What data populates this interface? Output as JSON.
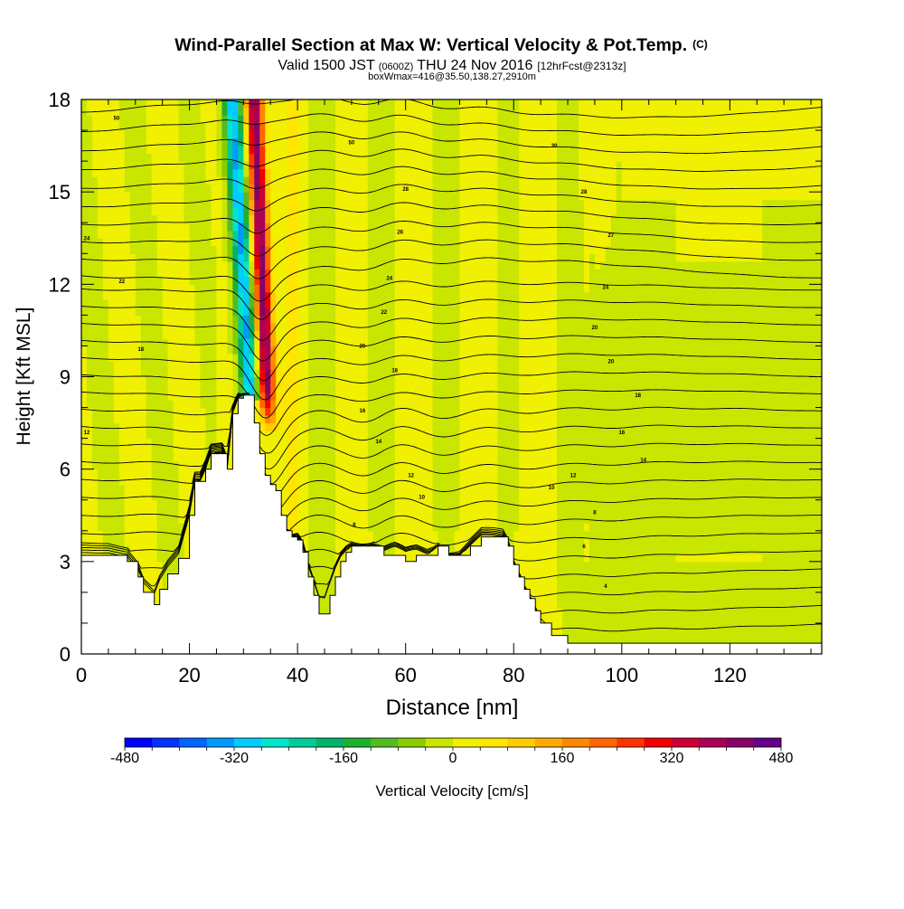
{
  "header": {
    "title": "Wind-Parallel Section at Max W: Vertical Velocity & Pot.Temp.",
    "title_mark": "(C)",
    "valid_prefix": "Valid 1500 JST",
    "valid_zulu": "(0600Z)",
    "valid_date": "THU 24 Nov 2016",
    "valid_fcst": "[12hrFcst@2313z]",
    "boxinfo": "boxWmax=416@35.50,138.27,2910m"
  },
  "chart_data": {
    "type": "heatmap",
    "title": "Wind-Parallel Section at Max W: Vertical Velocity & Pot.Temp.",
    "xlabel": "Distance [nm]",
    "ylabel": "Height [Kft MSL]",
    "xlim": [
      0,
      137
    ],
    "ylim": [
      0,
      18
    ],
    "x_ticks": [
      0,
      20,
      40,
      60,
      80,
      100,
      120
    ],
    "x_tick_labels": [
      "0",
      "20",
      "40",
      "60",
      "80",
      "100",
      "120"
    ],
    "y_ticks": [
      0,
      3,
      6,
      9,
      12,
      15,
      18
    ],
    "y_tick_labels": [
      "0",
      "3",
      "6",
      "9",
      "12",
      "15",
      "18"
    ],
    "grid": false,
    "terrain_profile": {
      "x": [
        0,
        5,
        8.5,
        10.5,
        11.5,
        13.5,
        14.5,
        16,
        18,
        20,
        21,
        22,
        23,
        24,
        25,
        26,
        27,
        28,
        29,
        30,
        31,
        32,
        33,
        34,
        35,
        36,
        37,
        38,
        39,
        40,
        41,
        42,
        43,
        44,
        45,
        46,
        47,
        48,
        49,
        50,
        52,
        54,
        56,
        58,
        60,
        62,
        64,
        66,
        68,
        70,
        72,
        74,
        76,
        78,
        79,
        80,
        81,
        82,
        83,
        84,
        85,
        87,
        90,
        95,
        100,
        110,
        120,
        130,
        137
      ],
      "y": [
        3.2,
        3.2,
        3.0,
        2.5,
        2.0,
        1.6,
        2.1,
        2.6,
        3.1,
        4.5,
        5.6,
        5.6,
        6.0,
        6.5,
        6.5,
        6.5,
        6.0,
        7.8,
        8.3,
        8.4,
        8.4,
        7.5,
        6.5,
        5.8,
        5.5,
        5.3,
        4.5,
        4.0,
        3.8,
        3.7,
        3.3,
        2.5,
        1.9,
        1.3,
        1.3,
        1.9,
        2.5,
        3.0,
        3.3,
        3.5,
        3.5,
        3.5,
        3.2,
        3.2,
        3.0,
        3.2,
        3.2,
        3.5,
        3.2,
        3.2,
        3.5,
        3.8,
        3.8,
        3.8,
        3.5,
        2.9,
        2.5,
        2.1,
        1.8,
        1.4,
        1.0,
        0.6,
        0.35,
        0.35,
        0.35,
        0.35,
        0.35,
        0.35,
        0.35
      ]
    },
    "vertical_velocity": {
      "units": "cm/s",
      "background": 5,
      "downdraft_core": {
        "x_center": 30,
        "value": -330,
        "height_range": [
          8.3,
          18
        ]
      },
      "updraft_core": {
        "x_center": 33.5,
        "value": 416,
        "height_range": [
          7.0,
          18
        ]
      },
      "max_w": 416
    },
    "potential_temperature_labels": [
      {
        "text": "50",
        "x": 6.5,
        "y": 17.4
      },
      {
        "text": "50",
        "x": 50,
        "y": 16.6
      },
      {
        "text": "30",
        "x": 87.5,
        "y": 16.5
      },
      {
        "text": "28",
        "x": 60,
        "y": 15.1
      },
      {
        "text": "28",
        "x": 93,
        "y": 15.0
      },
      {
        "text": "24",
        "x": 1,
        "y": 13.5
      },
      {
        "text": "26",
        "x": 59,
        "y": 13.7
      },
      {
        "text": "27",
        "x": 98,
        "y": 13.6
      },
      {
        "text": "22",
        "x": 7.5,
        "y": 12.1
      },
      {
        "text": "24",
        "x": 57,
        "y": 12.2
      },
      {
        "text": "24",
        "x": 97,
        "y": 11.9
      },
      {
        "text": "22",
        "x": 56,
        "y": 11.1
      },
      {
        "text": "20",
        "x": 95,
        "y": 10.6
      },
      {
        "text": "20",
        "x": 52,
        "y": 10.0
      },
      {
        "text": "18",
        "x": 11,
        "y": 9.9
      },
      {
        "text": "20",
        "x": 98,
        "y": 9.5
      },
      {
        "text": "18",
        "x": 58,
        "y": 9.2
      },
      {
        "text": "18",
        "x": 103,
        "y": 8.4
      },
      {
        "text": "16",
        "x": 52,
        "y": 7.9
      },
      {
        "text": "16",
        "x": 100,
        "y": 7.2
      },
      {
        "text": "14",
        "x": 55,
        "y": 6.9
      },
      {
        "text": "14",
        "x": 104,
        "y": 6.3
      },
      {
        "text": "12",
        "x": 61,
        "y": 5.8
      },
      {
        "text": "12",
        "x": 91,
        "y": 5.8
      },
      {
        "text": "10",
        "x": 63,
        "y": 5.1
      },
      {
        "text": "10",
        "x": 87,
        "y": 5.4
      },
      {
        "text": "8",
        "x": 95,
        "y": 4.6
      },
      {
        "text": "6",
        "x": 50.5,
        "y": 4.2
      },
      {
        "text": "6",
        "x": 93,
        "y": 3.5
      },
      {
        "text": "4",
        "x": 97,
        "y": 2.2
      },
      {
        "text": "12",
        "x": 1,
        "y": 7.2
      }
    ],
    "colorbar": {
      "label": "Vertical Velocity [cm/s]",
      "min": -480,
      "max": 480,
      "step": 40,
      "tick_values": [
        -480,
        -320,
        -160,
        0,
        160,
        320,
        480
      ],
      "tick_labels": [
        "-480",
        "-320",
        "-160",
        "0",
        "160",
        "320",
        "480"
      ],
      "colors": [
        "#0000ff",
        "#0033ff",
        "#0066ff",
        "#0099ff",
        "#00ccff",
        "#00e6cc",
        "#00cc99",
        "#00b366",
        "#20b030",
        "#55bb22",
        "#88cc00",
        "#c8e600",
        "#f0f000",
        "#ffe600",
        "#ffcc00",
        "#ffaa00",
        "#ff8800",
        "#ff6600",
        "#ff3300",
        "#ee0000",
        "#cc0033",
        "#aa0055",
        "#880066",
        "#660088"
      ]
    }
  }
}
